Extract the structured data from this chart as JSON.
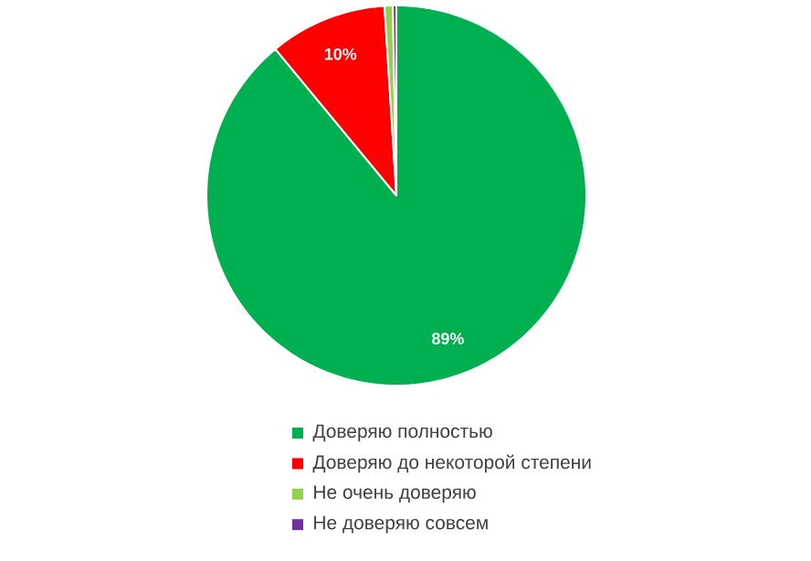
{
  "chart_data": {
    "type": "pie",
    "categories": [
      "Доверяю полностью",
      "Доверяю до некоторой степени",
      "Не очень доверяю",
      "Не доверяю совсем"
    ],
    "values": [
      89,
      10,
      0.7,
      0.3
    ],
    "colors": [
      "#00b050",
      "#ff0000",
      "#92d050",
      "#7030a0"
    ],
    "value_labels": [
      "89%",
      "10%",
      null,
      null
    ],
    "legend": "bottom"
  }
}
